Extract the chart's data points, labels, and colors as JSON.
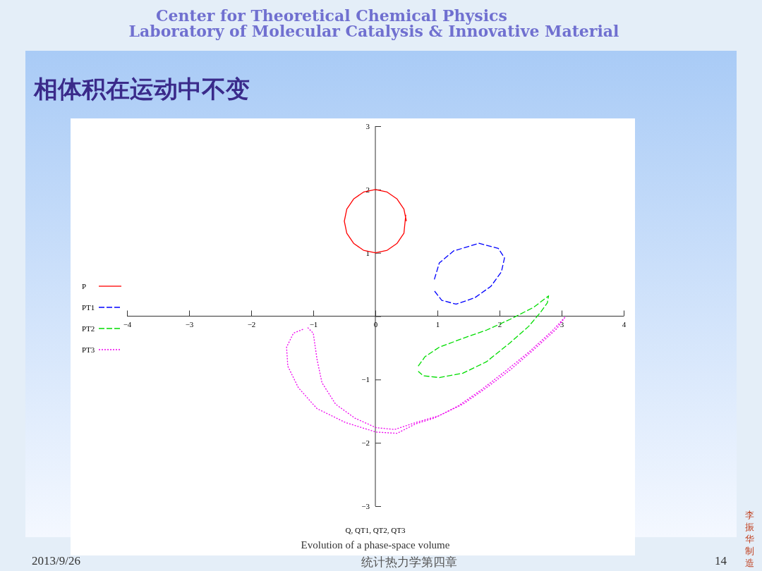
{
  "chart_data": {
    "type": "line",
    "title": "相体积在运动中不变",
    "xlabel": "Q, QT1, QT2, QT3",
    "annotations": [
      "Center for Theoretical Chemical Physics",
      "Laboratory of Molecular Catalysis & Innovative Material",
      "Evolution of a phase-space volume",
      "2013/9/26",
      "统计热力学第四章",
      "14",
      "李振华制造"
    ],
    "xlim": [
      -4,
      4
    ],
    "ylim": [
      -3,
      3
    ],
    "xticks": [
      -4,
      -3,
      -2,
      -1,
      0,
      1,
      2,
      3,
      4
    ],
    "yticks": [
      -3,
      -2,
      -1,
      {
        "value": 0,
        "label": null
      },
      1,
      2,
      3
    ],
    "grid": false,
    "legend": "left",
    "marker": "none",
    "series": [
      {
        "name": "P",
        "color": "#ff0000",
        "line_style": "solid",
        "x": [
          0.5,
          0.46,
          0.35,
          0.19,
          0,
          -0.19,
          -0.35,
          -0.46,
          -0.5,
          -0.46,
          -0.35,
          -0.19,
          0,
          0.19,
          0.35,
          0.46,
          0.49
        ],
        "values": [
          1.5,
          1.69,
          1.85,
          1.96,
          2,
          1.96,
          1.85,
          1.69,
          1.5,
          1.31,
          1.15,
          1.04,
          1,
          1.04,
          1.15,
          1.31,
          1.6
        ]
      },
      {
        "name": "PT1",
        "color": "#0000ff",
        "line_style": "dashed",
        "x": [
          0.95,
          1.03,
          1.26,
          1.67,
          1.98,
          2.08,
          2.03,
          1.86,
          1.6,
          1.3,
          1.07,
          0.95
        ],
        "values": [
          0.58,
          0.84,
          1.03,
          1.15,
          1.07,
          0.92,
          0.7,
          0.47,
          0.29,
          0.19,
          0.25,
          0.4
        ]
      },
      {
        "name": "PT2",
        "color": "#00dd00",
        "line_style": "dashed",
        "x": [
          0.69,
          0.8,
          1.03,
          1.41,
          1.79,
          2.17,
          2.55,
          2.79,
          2.77,
          2.66,
          2.47,
          2.17,
          1.79,
          1.41,
          1.03,
          0.77,
          0.69
        ],
        "values": [
          -0.79,
          -0.64,
          -0.49,
          -0.35,
          -0.22,
          -0.05,
          0.14,
          0.32,
          0.21,
          0.06,
          -0.16,
          -0.42,
          -0.72,
          -0.9,
          -0.97,
          -0.94,
          -0.87
        ]
      },
      {
        "name": "PT3",
        "color": "#ee00ee",
        "line_style": "dotted",
        "x": [
          -1.09,
          -1,
          -0.94,
          -0.86,
          -0.64,
          -0.33,
          0.01,
          0.31,
          0.65,
          1.03,
          1.41,
          1.79,
          2.17,
          2.55,
          2.92,
          3.06,
          2.85,
          2.47,
          2.09,
          1.71,
          1.33,
          0.95,
          0.65,
          0.35,
          0.01,
          -0.48,
          -0.94,
          -1.24,
          -1.41,
          -1.43,
          -1.32,
          -1.15
        ],
        "values": [
          -0.18,
          -0.27,
          -0.68,
          -1.05,
          -1.39,
          -1.61,
          -1.76,
          -1.79,
          -1.68,
          -1.57,
          -1.39,
          -1.13,
          -0.85,
          -0.53,
          -0.2,
          -0.01,
          -0.23,
          -0.57,
          -0.87,
          -1.16,
          -1.42,
          -1.61,
          -1.7,
          -1.85,
          -1.83,
          -1.68,
          -1.46,
          -1.13,
          -0.79,
          -0.49,
          -0.27,
          -0.2
        ]
      }
    ]
  }
}
